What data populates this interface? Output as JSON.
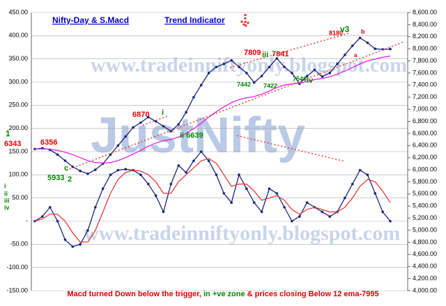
{
  "chart_data": {
    "type": "line",
    "title": "Nifty-Day & S.Macd",
    "subtitle": "Trend Indicator",
    "x": [
      0,
      1,
      2,
      3,
      4,
      5,
      6,
      7,
      8,
      9,
      10,
      11,
      12,
      13,
      14,
      15,
      16,
      17,
      18,
      19,
      20,
      21,
      22,
      23,
      24,
      25,
      26,
      27,
      28,
      29,
      30,
      31,
      32,
      33,
      34,
      35,
      36,
      37,
      38,
      39,
      40,
      41,
      42,
      43,
      44,
      45,
      46,
      47
    ],
    "xlim": [
      0,
      47
    ],
    "ylim": [
      -150,
      450
    ],
    "yticks": [
      {
        "value": 450,
        "label": "450.00"
      },
      {
        "value": 400,
        "label": "400.00"
      },
      {
        "value": 350,
        "label": "350.00"
      },
      {
        "value": 300,
        "label": "300.00"
      },
      {
        "value": 250,
        "label": "250.00"
      },
      {
        "value": 200,
        "label": "200.00"
      },
      {
        "value": 150,
        "label": "150.00"
      },
      {
        "value": 100,
        "label": "100.00"
      },
      {
        "value": 50,
        "label": "50.00"
      },
      {
        "value": 0,
        "label": "-"
      },
      {
        "value": -50,
        "label": "-50.00"
      },
      {
        "value": -100,
        "label": "-100.00"
      },
      {
        "value": -150,
        "label": "-150.00"
      }
    ],
    "y2lim": [
      4000,
      8600
    ],
    "y2ticks": [
      {
        "value": 8600,
        "label": "8,600.00"
      },
      {
        "value": 8400,
        "label": "8,400.00"
      },
      {
        "value": 8200,
        "label": "8,200.00"
      },
      {
        "value": 8000,
        "label": "8,000.00"
      },
      {
        "value": 7800,
        "label": "7,800.00"
      },
      {
        "value": 7600,
        "label": "7,600.00"
      },
      {
        "value": 7400,
        "label": "7,400.00"
      },
      {
        "value": 7200,
        "label": "7,200.00"
      },
      {
        "value": 7000,
        "label": "7,000.00"
      },
      {
        "value": 6800,
        "label": "6,800.00"
      },
      {
        "value": 6600,
        "label": "6,600.00"
      },
      {
        "value": 6400,
        "label": "6,400.00"
      },
      {
        "value": 6200,
        "label": "6,200.00"
      },
      {
        "value": 6000,
        "label": "6,000.00"
      },
      {
        "value": 5800,
        "label": "5,800.00"
      },
      {
        "value": 5600,
        "label": "5,600.00"
      },
      {
        "value": 5400,
        "label": "5,400.00"
      },
      {
        "value": 5200,
        "label": "5,200.00"
      },
      {
        "value": 5000,
        "label": "5,000.00"
      },
      {
        "value": 4800,
        "label": "4,800.00"
      },
      {
        "value": 4600,
        "label": "4,600.00"
      },
      {
        "value": 4400,
        "label": "4,400.00"
      },
      {
        "value": 4200,
        "label": "4,200.00"
      },
      {
        "value": 4000,
        "label": "4,000.00"
      }
    ],
    "grid": true,
    "series": [
      {
        "color": "#1a237e",
        "axis": "y2",
        "markers": true,
        "values": [
          6343,
          6356,
          6330,
          6250,
          6150,
          6050,
          5980,
          5933,
          6000,
          6100,
          6250,
          6400,
          6550,
          6700,
          6780,
          6870,
          6800,
          6720,
          6639,
          6750,
          6950,
          7200,
          7400,
          7600,
          7700,
          7750,
          7809,
          7700,
          7600,
          7442,
          7550,
          7700,
          7841,
          7700,
          7600,
          7422,
          7550,
          7650,
          7540,
          7600,
          7750,
          7900,
          8050,
          8180,
          8100,
          8000,
          7990,
          7995
        ]
      },
      {
        "color": "#e020e0",
        "axis": "y2",
        "markers": false,
        "values": [
          6343,
          6345,
          6340,
          6320,
          6290,
          6250,
          6200,
          6150,
          6120,
          6110,
          6120,
          6150,
          6200,
          6260,
          6320,
          6390,
          6440,
          6480,
          6500,
          6540,
          6600,
          6680,
          6770,
          6870,
          6960,
          7040,
          7110,
          7160,
          7190,
          7210,
          7250,
          7300,
          7360,
          7400,
          7420,
          7430,
          7460,
          7490,
          7510,
          7540,
          7580,
          7630,
          7690,
          7750,
          7800,
          7830,
          7860,
          7880
        ]
      },
      {
        "color": "#1a237e",
        "axis": "y",
        "markers": true,
        "values": [
          0,
          10,
          30,
          0,
          -40,
          -55,
          -50,
          -20,
          30,
          70,
          100,
          110,
          112,
          110,
          100,
          80,
          55,
          20,
          80,
          120,
          105,
          130,
          150,
          130,
          100,
          60,
          40,
          100,
          70,
          40,
          20,
          70,
          60,
          30,
          0,
          10,
          40,
          30,
          20,
          10,
          20,
          50,
          80,
          110,
          100,
          60,
          20,
          0
        ]
      },
      {
        "color": "#e53935",
        "axis": "y",
        "markers": false,
        "values": [
          0,
          5,
          15,
          15,
          0,
          -25,
          -45,
          -45,
          -20,
          20,
          60,
          90,
          105,
          110,
          108,
          100,
          85,
          60,
          60,
          85,
          100,
          115,
          130,
          135,
          125,
          100,
          75,
          80,
          80,
          65,
          45,
          50,
          55,
          45,
          25,
          15,
          25,
          30,
          25,
          20,
          20,
          30,
          50,
          75,
          90,
          85,
          65,
          40
        ]
      }
    ],
    "watermarks": [
      "www.tradeinniftyonly.blogspot.com",
      "JustNifty",
      "www.tradeinniftyonly.blogspot.com"
    ],
    "annotations": [
      "1",
      "6343",
      "6356",
      "5933",
      "c",
      "2",
      "6870",
      "i",
      "ii 6639",
      "7809",
      "iii",
      "7841",
      "7442",
      "7422",
      "7540",
      "iv",
      "8180",
      "v3",
      "b",
      "a",
      "i",
      "ii",
      "iii",
      "iv"
    ],
    "footer": [
      "Macd turned Down below the trigger,",
      " in +ve zone ",
      "& prices closing Below 12 ema-7995"
    ]
  }
}
